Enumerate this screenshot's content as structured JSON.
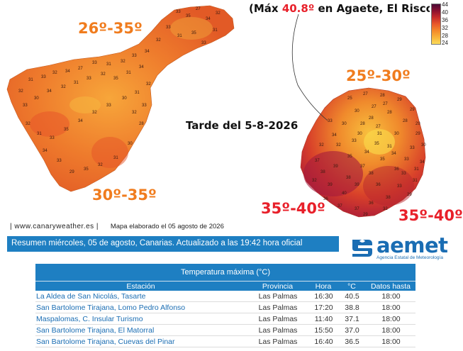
{
  "map": {
    "tenerife_ranges": [
      "26º-35º",
      "30º-35º"
    ],
    "gran_canaria_ranges": [
      "25º-30º",
      "35º-40º",
      "35º-40º"
    ],
    "max_note": {
      "prefix": "(Máx ",
      "value": "40.8º",
      "suffix": " en Agaete, El Risco)"
    },
    "date_label": "Tarde del 5-8-2026",
    "legend_ticks": [
      "44",
      "40",
      "36",
      "32",
      "28",
      "24"
    ],
    "colors": {
      "hot_dark": "#8a1030",
      "red": "#c62a2a",
      "orange": "#e9582a",
      "light_orange": "#f48a2a",
      "yellow": "#fbdc5a",
      "label_orange": "#f07c1e",
      "label_red": "#e8202a"
    },
    "tenerife_station_values": [
      "33",
      "35",
      "27",
      "34",
      "32",
      "33",
      "31",
      "35",
      "33",
      "31",
      "32",
      "34",
      "33",
      "32",
      "31",
      "33",
      "27",
      "34",
      "32",
      "33",
      "31",
      "32",
      "33",
      "30",
      "34",
      "32",
      "31",
      "33",
      "32",
      "35",
      "31",
      "34",
      "32",
      "31",
      "30",
      "33",
      "32",
      "34",
      "35",
      "33",
      "31",
      "32",
      "34",
      "33",
      "29",
      "35",
      "32",
      "31",
      "30",
      "28",
      "33",
      "32"
    ],
    "gran_canaria_station_values": [
      "25",
      "27",
      "28",
      "29",
      "29",
      "30",
      "27",
      "28",
      "28",
      "29",
      "33",
      "30",
      "28",
      "27",
      "37",
      "38",
      "39",
      "38",
      "39",
      "30",
      "33",
      "34",
      "32",
      "33",
      "34",
      "35",
      "36",
      "38",
      "39",
      "40",
      "31",
      "29",
      "38",
      "36",
      "37",
      "36",
      "33",
      "32",
      "34",
      "31",
      "33",
      "35",
      "37",
      "35",
      "32",
      "36",
      "37",
      "31",
      "30",
      "29",
      "27",
      "28",
      "30",
      "31",
      "34",
      "33",
      "32",
      "29"
    ]
  },
  "footer": {
    "website": "| www.canaryweather.es |",
    "map_note": "Mapa elaborado el 05 agosto de 2026"
  },
  "summary_bar": "Resumen miércoles, 05 de agosto, Canarias. Actualizado a las 19:42 hora oficial",
  "aemet": {
    "word": "aemet",
    "subtitle": "Agencia Estatal de Meteorología"
  },
  "table": {
    "title": "Temperatura máxima (°C)",
    "headers": [
      "Estación",
      "Provincia",
      "Hora",
      "°C",
      "Datos hasta"
    ],
    "rows": [
      [
        "La Aldea de San Nicolás, Tasarte",
        "Las Palmas",
        "16:30",
        "40.5",
        "18:00"
      ],
      [
        "San Bartolome Tirajana, Lomo Pedro Alfonso",
        "Las Palmas",
        "17:20",
        "38.8",
        "18:00"
      ],
      [
        "Maspalomas, C. Insular Turismo",
        "Las Palmas",
        "11:40",
        "37.1",
        "18:00"
      ],
      [
        "San Bartolome Tirajana, El Matorral",
        "Las Palmas",
        "15:50",
        "37.0",
        "18:00"
      ],
      [
        "San Bartolome Tirajana, Cuevas del Pinar",
        "Las Palmas",
        "16:40",
        "36.5",
        "18:00"
      ]
    ]
  }
}
